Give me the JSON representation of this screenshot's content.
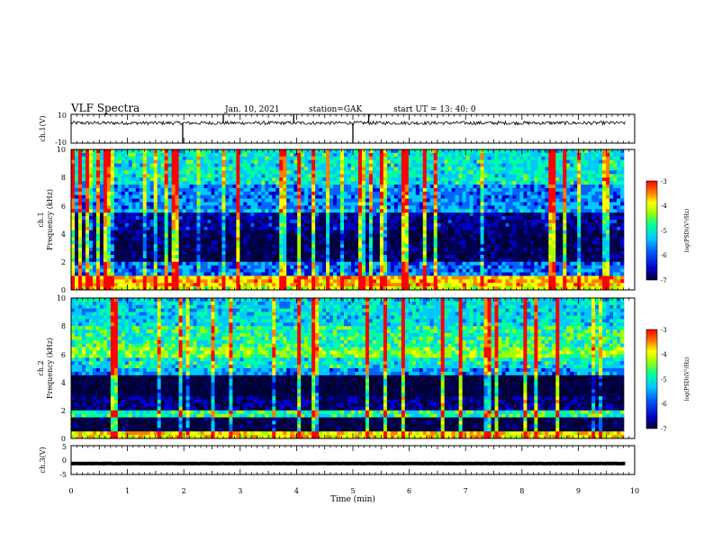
{
  "header": {
    "title": "VLF Spectra",
    "date": "Jan. 10, 2021",
    "station": "station=GAK",
    "start": "start  UT =  13: 40: 0"
  },
  "colors": {
    "spectrogram_scale": [
      "#000033",
      "#00005a",
      "#0000c8",
      "#0064ff",
      "#00c8ff",
      "#00ffa0",
      "#a0ff00",
      "#ffff00",
      "#ff8000",
      "#ff0000"
    ]
  },
  "chart_data": [
    {
      "type": "line",
      "title": "",
      "ylabel": "ch.1(V)",
      "ylim": [
        -10,
        10
      ],
      "yticks": [
        "10",
        "-10"
      ],
      "xlim": [
        0,
        10
      ],
      "baseline": 4,
      "noise": 1.2,
      "spikes": [
        {
          "x": 1.98,
          "y": -10
        },
        {
          "x": 2.7,
          "y": 10
        },
        {
          "x": 3.95,
          "y": 10
        },
        {
          "x": 5.0,
          "y": -10
        },
        {
          "x": 5.28,
          "y": 10
        }
      ]
    },
    {
      "type": "heatmap",
      "ylabel_channel": "ch.1",
      "ylabel": "Frequency  (kHz)",
      "ylim": [
        0,
        10
      ],
      "yticks": [
        "0",
        "2",
        "4",
        "6",
        "8",
        "10"
      ],
      "xlim": [
        0,
        10
      ],
      "data_end_min": 9.83,
      "colorbar": {
        "label": "log(PSD)(V²/Hz)",
        "range": [
          -7,
          -3
        ],
        "ticks": [
          "-3",
          "-4",
          "-5",
          "-6",
          "-7"
        ]
      },
      "bands": [
        {
          "f": [
            0,
            0.3
          ],
          "level": -4.2
        },
        {
          "f": [
            0.3,
            0.9
          ],
          "level": -3.8
        },
        {
          "f": [
            0.9,
            2.0
          ],
          "level": -5.6
        },
        {
          "f": [
            2.0,
            4.2
          ],
          "level": -6.5
        },
        {
          "f": [
            4.2,
            5.4
          ],
          "level": -6.2
        },
        {
          "f": [
            5.4,
            5.7
          ],
          "level": -5.2
        },
        {
          "f": [
            5.7,
            7.5
          ],
          "level": -5.5
        },
        {
          "f": [
            7.5,
            10
          ],
          "level": -5.0
        }
      ]
    },
    {
      "type": "heatmap",
      "ylabel_channel": "ch.2",
      "ylabel": "Frequency  (kHz)",
      "ylim": [
        0,
        10
      ],
      "yticks": [
        "0",
        "2",
        "4",
        "6",
        "8",
        "10"
      ],
      "xlim": [
        0,
        10
      ],
      "data_end_min": 9.83,
      "colorbar": {
        "label": "log(PSD)(V²/Hz)",
        "range": [
          -7,
          -3
        ],
        "ticks": [
          "-3",
          "-4",
          "-5",
          "-6",
          "-7"
        ]
      },
      "bands": [
        {
          "f": [
            0,
            0.4
          ],
          "level": -4.0
        },
        {
          "f": [
            0.4,
            1.5
          ],
          "level": -6.6
        },
        {
          "f": [
            1.5,
            2.1
          ],
          "level": -4.8
        },
        {
          "f": [
            2.1,
            3.0
          ],
          "level": -6.3
        },
        {
          "f": [
            3.0,
            4.5
          ],
          "level": -6.7
        },
        {
          "f": [
            4.5,
            5.0
          ],
          "level": -5.4
        },
        {
          "f": [
            5.0,
            5.8
          ],
          "level": -5.0
        },
        {
          "f": [
            5.8,
            6.4
          ],
          "level": -4.5
        },
        {
          "f": [
            6.4,
            8.0
          ],
          "level": -4.8
        },
        {
          "f": [
            8.0,
            10
          ],
          "level": -5.1
        }
      ]
    },
    {
      "type": "line",
      "ylabel": "ch.3(V)",
      "ylim": [
        -5,
        5
      ],
      "yticks": [
        "5",
        "0",
        "-5"
      ],
      "xlim": [
        0,
        10
      ],
      "xlabel": "Time  (min)",
      "xticks": [
        "0",
        "1",
        "2",
        "3",
        "4",
        "5",
        "6",
        "7",
        "8",
        "9",
        "10"
      ],
      "baseline": -1.2,
      "noise": 0.05
    }
  ]
}
